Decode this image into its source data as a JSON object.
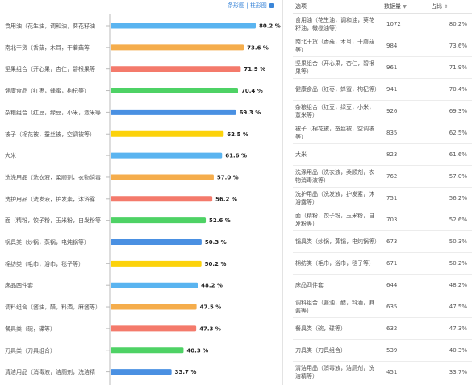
{
  "toolbar": {
    "view_pie": "条形图",
    "view_bar": "柱形图",
    "save_icon": "save-icon"
  },
  "table": {
    "headers": {
      "option": "选项",
      "count": "数据量",
      "percent": "占比"
    },
    "rows": [
      {
        "option": "食用油（花生油，调和油，葵花籽油，橄榄油等）",
        "count": "1072",
        "percent": "80.2%"
      },
      {
        "option": "南北干货（香菇，木耳，干蘑菇等）",
        "count": "984",
        "percent": "73.6%"
      },
      {
        "option": "坚果组合（开心果，杏仁，碧根果等）",
        "count": "961",
        "percent": "71.9%"
      },
      {
        "option": "健康食品（红枣，蜂蜜，枸杞等）",
        "count": "941",
        "percent": "70.4%"
      },
      {
        "option": "杂粮组合（红豆，绿豆，小米，薏米等）",
        "count": "926",
        "percent": "69.3%"
      },
      {
        "option": "被子（棉花被，蚕丝被，空调被等）",
        "count": "835",
        "percent": "62.5%"
      },
      {
        "option": "大米",
        "count": "823",
        "percent": "61.6%"
      },
      {
        "option": "洗涤用品（洗衣液，柔顺剂，衣物消毒液等）",
        "count": "762",
        "percent": "57.0%"
      },
      {
        "option": "洗护用品（洗发液，护发素，沐浴露等）",
        "count": "751",
        "percent": "56.2%"
      },
      {
        "option": "面（精粉，饺子粉，玉米粉，自发粉等）",
        "count": "703",
        "percent": "52.6%"
      },
      {
        "option": "锅具类（炒锅，蒸锅，电炖锅等）",
        "count": "673",
        "percent": "50.3%"
      },
      {
        "option": "棉纺类（毛巾，浴巾，毯子等）",
        "count": "671",
        "percent": "50.2%"
      },
      {
        "option": "床品四件套",
        "count": "644",
        "percent": "48.2%"
      },
      {
        "option": "调料组合（酱油，醋，料酒，麻酱等）",
        "count": "635",
        "percent": "47.5%"
      },
      {
        "option": "餐具类（碗，碟等）",
        "count": "632",
        "percent": "47.3%"
      },
      {
        "option": "刀具类（刀具组合）",
        "count": "539",
        "percent": "40.3%"
      },
      {
        "option": "清洁用品（消毒液，洁厕剂，洗洁精等）",
        "count": "451",
        "percent": "33.7%"
      }
    ]
  },
  "chart_data": {
    "type": "bar",
    "orientation": "horizontal",
    "categories": [
      "食用油（花生油，调和油，葵花籽油",
      "南北干货（香菇，木耳，干蘑菇等",
      "坚果组合（开心果，杏仁，碧根果等",
      "健康食品（红枣，蜂蜜，枸杞等）",
      "杂粮组合（红豆，绿豆，小米，薏米等",
      "被子（棉花被，蚕丝被，空调被等）",
      "大米",
      "洗涤用品（洗衣液，柔顺剂，衣物消毒",
      "洗护用品（洗发液，护发素，沐浴露",
      "面（精粉，饺子粉，玉米粉，自发粉等",
      "锅具类（炒锅，蒸锅，电炖锅等）",
      "棉纺类（毛巾，浴巾，毯子等）",
      "床品四件套",
      "调料组合（酱油，醋，料酒，麻酱等）",
      "餐具类（碗，碟等）",
      "刀具类（刀具组合）",
      "清洁用品（消毒液，洁厕剂，洗洁精"
    ],
    "values": [
      80.2,
      73.6,
      71.9,
      70.4,
      69.3,
      62.5,
      61.6,
      57.0,
      56.2,
      52.6,
      50.3,
      50.2,
      48.2,
      47.5,
      47.3,
      40.3,
      33.7
    ],
    "value_labels": [
      "80.2 %",
      "73.6 %",
      "71.9 %",
      "70.4 %",
      "69.3 %",
      "62.5 %",
      "61.6 %",
      "57.0 %",
      "56.2 %",
      "52.6 %",
      "50.3 %",
      "50.2 %",
      "48.2 %",
      "47.5 %",
      "47.3 %",
      "40.3 %",
      "33.7 %"
    ],
    "colors": [
      "#5ab4f0",
      "#f5ad4c",
      "#f47a6b",
      "#4ed265",
      "#4a90e2",
      "#fcd20a",
      "#5ab4f0",
      "#f5ad4c",
      "#f47a6b",
      "#4ed265",
      "#4a90e2",
      "#fcd20a",
      "#5ab4f0",
      "#f5ad4c",
      "#f47a6b",
      "#4ed265",
      "#4a90e2"
    ],
    "xlim": [
      0,
      100
    ],
    "grid": false
  }
}
